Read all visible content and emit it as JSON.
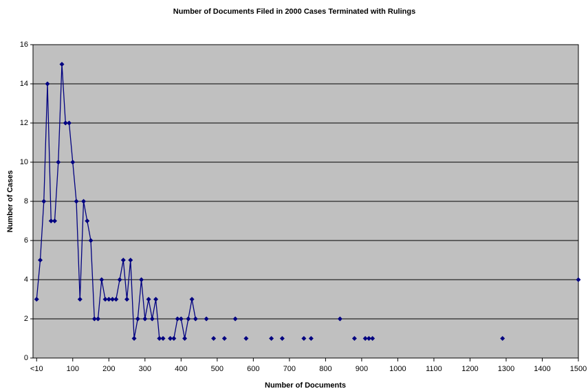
{
  "chart_data": {
    "type": "line",
    "title": "Number of Documents Filed in 2000 Cases Terminated with Rulings",
    "x_label": "Number of Documents",
    "y_label": "Number of Cases",
    "x": [
      0,
      10,
      20,
      30,
      40,
      50,
      60,
      70,
      80,
      90,
      100,
      110,
      120,
      130,
      140,
      150,
      160,
      170,
      180,
      190,
      200,
      210,
      220,
      230,
      240,
      250,
      260,
      270,
      280,
      290,
      300,
      310,
      320,
      330,
      340,
      350,
      360,
      370,
      380,
      390,
      400,
      410,
      420,
      430,
      440,
      450,
      470,
      480,
      490,
      500,
      520,
      530,
      550,
      560,
      580,
      590,
      650,
      660,
      680,
      690,
      740,
      750,
      760,
      770,
      840,
      850,
      880,
      890,
      910,
      920,
      930,
      940,
      1290,
      1300,
      1500
    ],
    "values": [
      3,
      5,
      8,
      14,
      7,
      7,
      10,
      15,
      12,
      12,
      10,
      8,
      3,
      8,
      7,
      6,
      2,
      2,
      4,
      3,
      3,
      3,
      3,
      4,
      5,
      3,
      5,
      1,
      2,
      4,
      2,
      3,
      2,
      3,
      1,
      1,
      null,
      1,
      1,
      2,
      2,
      1,
      2,
      3,
      2,
      null,
      2,
      null,
      1,
      null,
      1,
      null,
      2,
      null,
      1,
      null,
      1,
      null,
      1,
      null,
      1,
      null,
      1,
      null,
      2,
      null,
      1,
      null,
      1,
      1,
      1,
      null,
      1,
      null,
      4
    ],
    "color": "#000080",
    "xlim": [
      -10,
      1500
    ],
    "xticks": [
      {
        "value": 0,
        "label": "<10"
      },
      100,
      200,
      300,
      400,
      500,
      600,
      700,
      800,
      900,
      1000,
      1100,
      1200,
      1300,
      1400,
      1500
    ],
    "ylim": [
      0,
      16
    ],
    "yticks": [
      0,
      2,
      4,
      6,
      8,
      10,
      12,
      14,
      16
    ],
    "grid": true
  }
}
